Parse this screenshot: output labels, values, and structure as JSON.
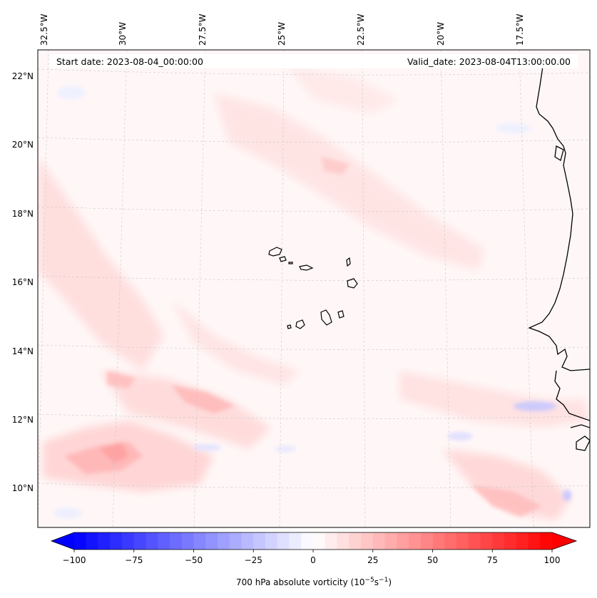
{
  "map": {
    "start_date_label": "Start date: 2023-08-04_00:00:00",
    "valid_date_label": "Valid_date: 2023-08-04T13:00:00.00",
    "lon_labels": [
      "32.5°W",
      "30°W",
      "27.5°W",
      "25°W",
      "22.5°W",
      "20°W",
      "17.5°W"
    ],
    "lat_labels": [
      "22°N",
      "20°N",
      "18°N",
      "16°N",
      "14°N",
      "12°N",
      "10°N"
    ],
    "extent": {
      "lon_min": -33.0,
      "lon_max": -16.0,
      "lat_min": 8.9,
      "lat_max": 22.8
    },
    "region_note": "Eastern tropical Atlantic with Cape Verde islands and West African coast"
  },
  "colorbar": {
    "label": "700 hPa absolute vorticity (10",
    "label_sup1": "−5",
    "label_mid": "s",
    "label_sup2": "−1",
    "label_end": ")",
    "ticks": [
      "−100",
      "−75",
      "−50",
      "−25",
      "0",
      "25",
      "50",
      "75",
      "100"
    ],
    "min": -100,
    "max": 100,
    "colormap": "bwr",
    "colors": {
      "neg": "#0000ff",
      "zero": "#ffffff",
      "pos": "#ff0000"
    }
  }
}
